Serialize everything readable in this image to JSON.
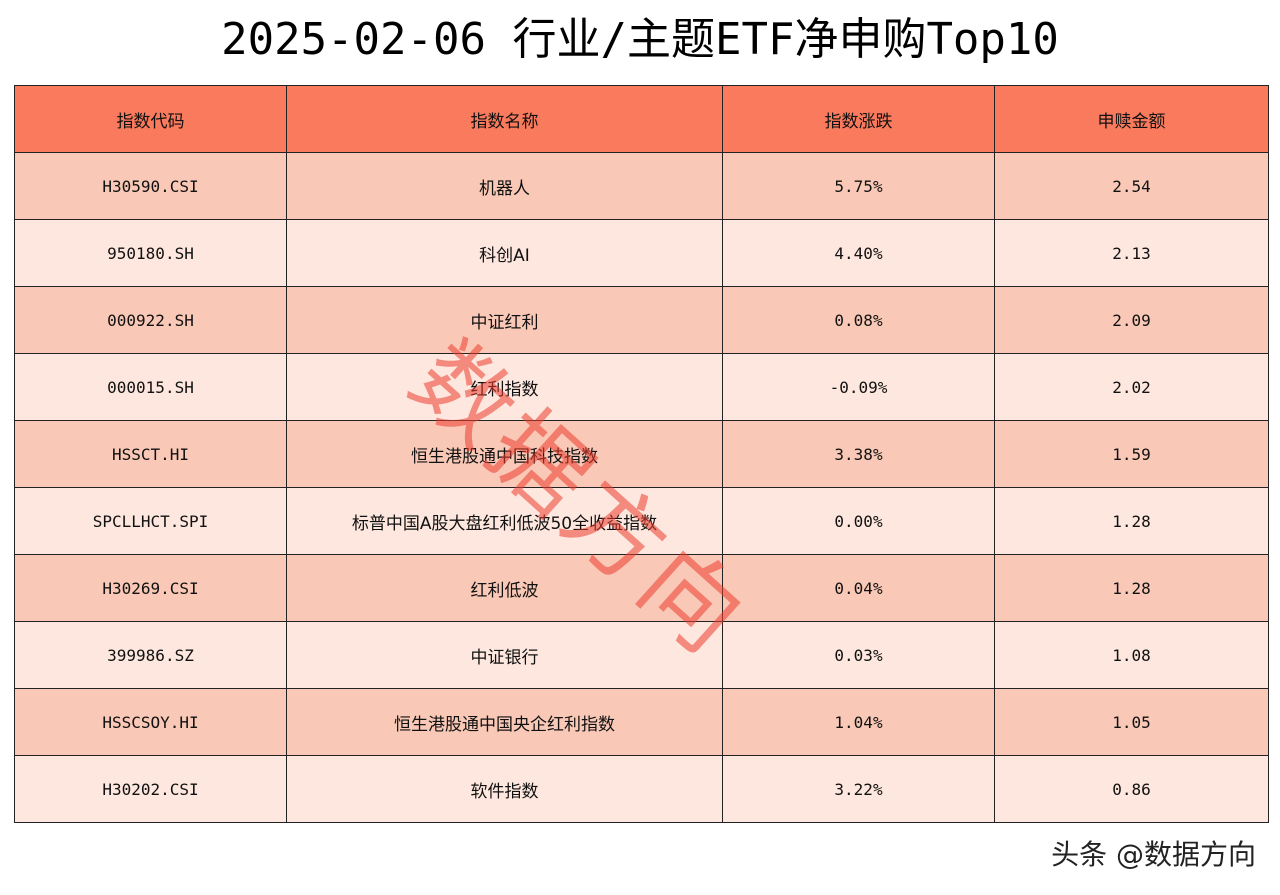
{
  "title": "2025-02-06 行业/主题ETF净申购Top10",
  "watermark": "数据方向",
  "footer": "头条 @数据方向",
  "chart_data": {
    "type": "table",
    "title": "2025-02-06 行业/主题ETF净申购Top10",
    "columns": [
      "指数代码",
      "指数名称",
      "指数涨跌",
      "申赎金额"
    ],
    "rows": [
      [
        "H30590.CSI",
        "机器人",
        "5.75%",
        "2.54"
      ],
      [
        "950180.SH",
        "科创AI",
        "4.40%",
        "2.13"
      ],
      [
        "000922.SH",
        "中证红利",
        "0.08%",
        "2.09"
      ],
      [
        "000015.SH",
        "红利指数",
        "-0.09%",
        "2.02"
      ],
      [
        "HSSCT.HI",
        "恒生港股通中国科技指数",
        "3.38%",
        "1.59"
      ],
      [
        "SPCLLHCT.SPI",
        "标普中国A股大盘红利低波50全收益指数",
        "0.00%",
        "1.28"
      ],
      [
        "H30269.CSI",
        "红利低波",
        "0.04%",
        "1.28"
      ],
      [
        "399986.SZ",
        "中证银行",
        "0.03%",
        "1.08"
      ],
      [
        "HSSCSOY.HI",
        "恒生港股通中国央企红利指数",
        "1.04%",
        "1.05"
      ],
      [
        "H30202.CSI",
        "软件指数",
        "3.22%",
        "0.86"
      ]
    ]
  },
  "colors": {
    "header_bg": "#f97a5c",
    "row_odd_bg": "#f9c8b6",
    "row_even_bg": "#fde7de",
    "watermark": "#ec3c2d"
  }
}
